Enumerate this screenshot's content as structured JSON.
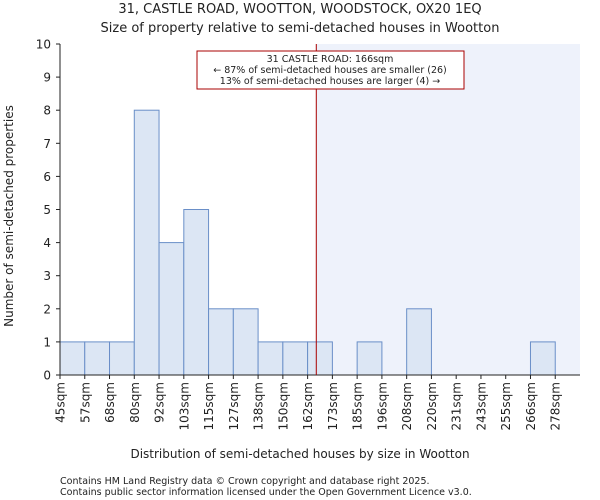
{
  "chart_data": {
    "type": "bar",
    "title": "31, CASTLE ROAD, WOOTTON, WOODSTOCK, OX20 1EQ",
    "subtitle": "Size of property relative to semi-detached houses in Wootton",
    "xlabel": "Distribution of semi-detached houses by size in Wootton",
    "ylabel": "Number of semi-detached properties",
    "ylim": [
      0,
      10
    ],
    "yticks": [
      0,
      1,
      2,
      3,
      4,
      5,
      6,
      7,
      8,
      9,
      10
    ],
    "categories": [
      "45sqm",
      "57sqm",
      "68sqm",
      "80sqm",
      "92sqm",
      "103sqm",
      "115sqm",
      "127sqm",
      "138sqm",
      "150sqm",
      "162sqm",
      "173sqm",
      "185sqm",
      "196sqm",
      "208sqm",
      "220sqm",
      "231sqm",
      "243sqm",
      "255sqm",
      "266sqm",
      "278sqm"
    ],
    "values": [
      1,
      1,
      1,
      8,
      4,
      5,
      2,
      2,
      1,
      1,
      1,
      0,
      1,
      0,
      2,
      0,
      0,
      0,
      0,
      1,
      0
    ],
    "marker": {
      "label_lines": [
        "31 CASTLE ROAD: 166sqm",
        "← 87% of semi-detached houses are smaller (26)",
        "13% of semi-detached houses are larger (4) →"
      ],
      "value_bin": 10.35
    },
    "colors": {
      "bar_fill": "#dce6f4",
      "bar_stroke": "#6a8fc8",
      "marker_line": "#aa0000",
      "shade": "#eef2fb"
    }
  },
  "footer": {
    "line1": "Contains HM Land Registry data © Crown copyright and database right 2025.",
    "line2": "Contains public sector information licensed under the Open Government Licence v3.0."
  }
}
